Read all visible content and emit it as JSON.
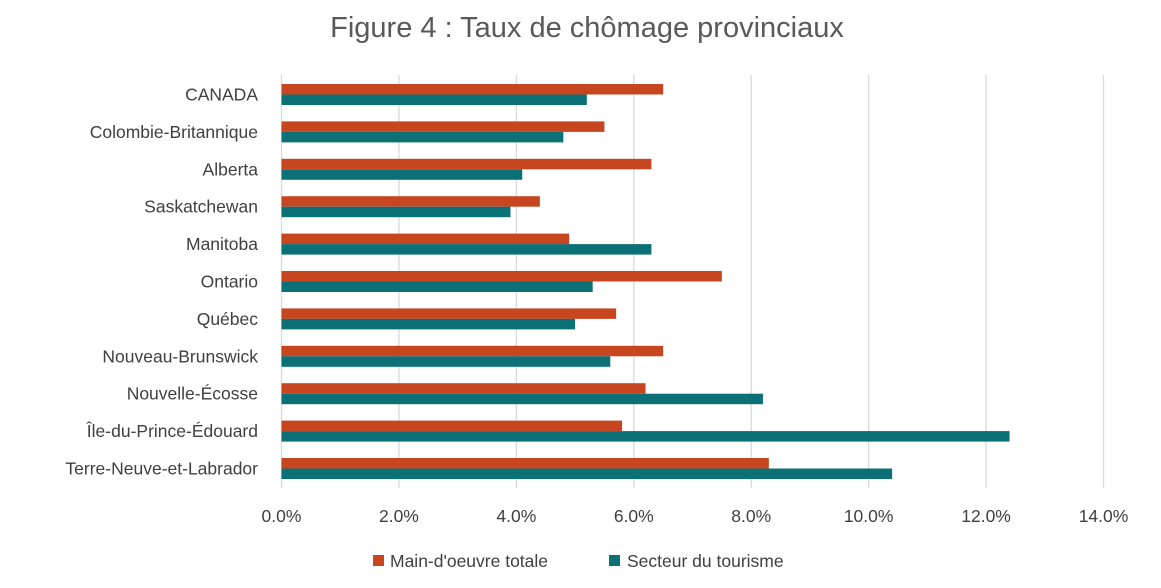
{
  "chart_data": {
    "type": "bar",
    "orientation": "horizontal",
    "title": "Figure 4 : Taux de chômage provinciaux",
    "xlabel": "",
    "ylabel": "",
    "categories": [
      "CANADA",
      "Colombie-Britannique",
      "Alberta",
      "Saskatchewan",
      "Manitoba",
      "Ontario",
      "Québec",
      "Nouveau-Brunswick",
      "Nouvelle-Écosse",
      "Île-du-Prince-Édouard",
      "Terre-Neuve-et-Labrador"
    ],
    "series": [
      {
        "name": "Main-d'oeuvre totale",
        "color": "#C8461F",
        "values": [
          0.065,
          0.055,
          0.063,
          0.044,
          0.049,
          0.075,
          0.057,
          0.065,
          0.062,
          0.058,
          0.083
        ]
      },
      {
        "name": "Secteur du tourisme",
        "color": "#0C7077",
        "values": [
          0.052,
          0.048,
          0.041,
          0.039,
          0.063,
          0.053,
          0.05,
          0.056,
          0.082,
          0.124,
          0.104
        ]
      }
    ],
    "xlim": [
      0,
      0.14
    ],
    "x_ticks": [
      0,
      0.02,
      0.04,
      0.06,
      0.08,
      0.1,
      0.12,
      0.14
    ],
    "x_tick_labels": [
      "0.0%",
      "2.0%",
      "4.0%",
      "6.0%",
      "8.0%",
      "10.0%",
      "12.0%",
      "14.0%"
    ],
    "grid": "vertical",
    "legend_position": "bottom"
  }
}
